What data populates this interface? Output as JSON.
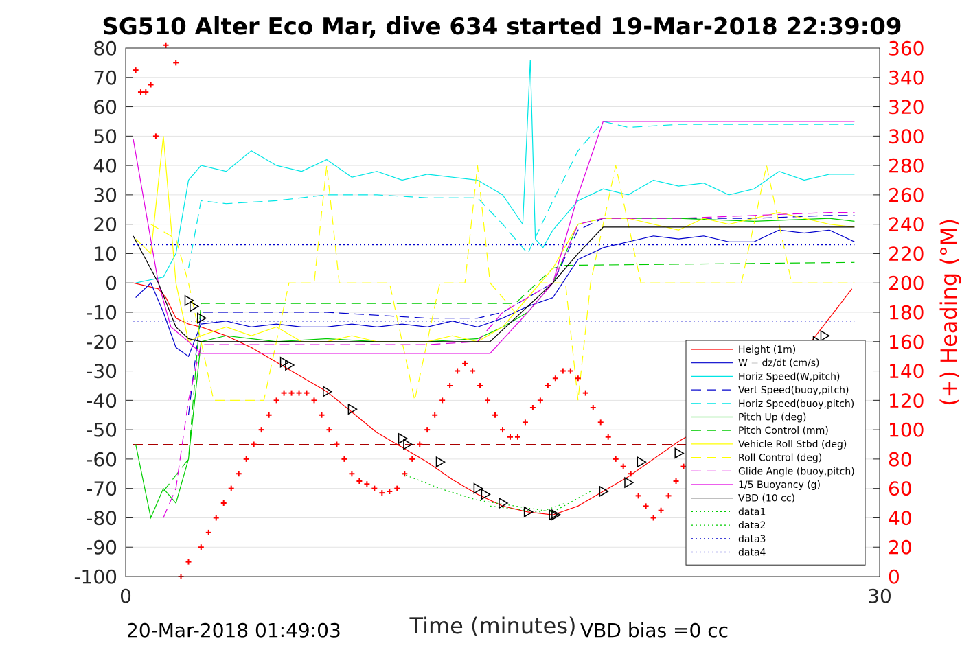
{
  "chart_data": {
    "type": "line",
    "title": "SG510 Alter Eco Mar, dive 634 started 19-Mar-2018 22:39:09",
    "xlabel": "Time (minutes)",
    "ylabel": "",
    "y2label": "(+) Heading (°M)",
    "xlim": [
      0,
      30
    ],
    "ylim": [
      -100,
      80
    ],
    "y2lim": [
      0,
      360
    ],
    "x_ticks": [
      0,
      30
    ],
    "y_ticks": [
      80,
      70,
      60,
      50,
      40,
      30,
      20,
      10,
      0,
      -10,
      -20,
      -30,
      -40,
      -50,
      -60,
      -70,
      -80,
      -90,
      -100
    ],
    "y2_ticks": [
      360,
      340,
      320,
      300,
      280,
      260,
      240,
      220,
      200,
      180,
      160,
      140,
      120,
      100,
      80,
      60,
      40,
      20,
      0
    ],
    "grid": true,
    "legend_position": "lower-right",
    "footer_left": "20-Mar-2018 01:49:03",
    "footer_right": "VBD bias =0 cc",
    "colors": {
      "red": "#ff0000",
      "blue": "#0000cc",
      "cyan": "#00e5e5",
      "green": "#00cc00",
      "yellow": "#ffff00",
      "magenta": "#e000e0",
      "black": "#000000"
    },
    "series": [
      {
        "name": "Height (1m)",
        "color": "#ff0000",
        "dash": "solid",
        "x": [
          0.3,
          0.8,
          1.3,
          1.6,
          2.0,
          2.5,
          3.0,
          4.0,
          5.0,
          6.0,
          7.0,
          8.0,
          9.0,
          10.0,
          11.0,
          12.0,
          13.0,
          14.0,
          15.0,
          16.0,
          17.0,
          18.0,
          19.0,
          20.0,
          21.0,
          22.0,
          23.0,
          24.0,
          25.0,
          26.0,
          27.0,
          28.0,
          28.9
        ],
        "y": [
          0,
          -1,
          -2,
          -5,
          -12,
          -14,
          -15,
          -18,
          -22,
          -27,
          -32,
          -37,
          -44,
          -51,
          -56,
          -61,
          -67,
          -72,
          -76,
          -78,
          -79,
          -76,
          -71,
          -66,
          -60,
          -54,
          -49,
          -43,
          -37,
          -31,
          -23,
          -12,
          -2
        ]
      },
      {
        "name": "W = dz/dt (cm/s)",
        "color": "#0000cc",
        "dash": "solid",
        "x": [
          0.4,
          1.0,
          1.5,
          2.0,
          2.5,
          3.0,
          4.0,
          5.0,
          6.0,
          7.0,
          8.0,
          9.0,
          10.0,
          11.0,
          12.0,
          13.0,
          14.0,
          15.0,
          16.0,
          17.0,
          18.0,
          19.0,
          20.0,
          21.0,
          22.0,
          23.0,
          24.0,
          25.0,
          26.0,
          27.0,
          28.0,
          29.0
        ],
        "y": [
          -5,
          0,
          -10,
          -22,
          -25,
          -14,
          -13,
          -15,
          -14,
          -15,
          -15,
          -14,
          -15,
          -14,
          -15,
          -13,
          -15,
          -12,
          -8,
          -5,
          8,
          12,
          14,
          16,
          15,
          16,
          14,
          14,
          18,
          17,
          18,
          14
        ]
      },
      {
        "name": "Horiz Speed(W,pitch)",
        "color": "#00e5e5",
        "dash": "solid",
        "x": [
          0.4,
          1.5,
          2.0,
          2.5,
          3.0,
          4.0,
          5.0,
          6.0,
          7.0,
          8.0,
          9.0,
          10.0,
          11.0,
          12.0,
          13.0,
          14.0,
          15.0,
          15.8,
          16.1,
          16.3,
          16.6,
          17.0,
          18.0,
          19.0,
          20.0,
          21.0,
          22.0,
          23.0,
          24.0,
          25.0,
          26.0,
          27.0,
          28.0,
          29.0
        ],
        "y": [
          0,
          2,
          10,
          35,
          40,
          38,
          45,
          40,
          38,
          42,
          36,
          38,
          35,
          37,
          36,
          35,
          30,
          20,
          76,
          15,
          12,
          18,
          28,
          32,
          30,
          35,
          33,
          34,
          30,
          32,
          38,
          35,
          37,
          37
        ]
      },
      {
        "name": "Vert Speed(buoy,pitch)",
        "color": "#0000cc",
        "dash": "dashed",
        "x": [
          2.5,
          3.0,
          4.0,
          6.0,
          8.0,
          10.0,
          12.0,
          14.0,
          15.0,
          16.0,
          17.0,
          18.0,
          19.0,
          22.0,
          25.0,
          28.0,
          29.0
        ],
        "y": [
          -45,
          -10,
          -10,
          -10,
          -10,
          -11,
          -12,
          -12,
          -10,
          -5,
          0,
          18,
          22,
          22,
          22,
          23,
          23
        ]
      },
      {
        "name": "Horiz Speed(buoy,pitch)",
        "color": "#00e5e5",
        "dash": "dashed",
        "x": [
          2.5,
          3.0,
          4.0,
          6.0,
          8.0,
          10.0,
          12.0,
          14.0,
          15.0,
          16.0,
          17.0,
          18.0,
          19.0,
          20.0,
          22.0,
          25.0,
          28.0,
          29.0
        ],
        "y": [
          5,
          28,
          27,
          28,
          30,
          30,
          29,
          29,
          20,
          10,
          28,
          45,
          55,
          53,
          54,
          54,
          54,
          54
        ]
      },
      {
        "name": "Pitch Up (deg)",
        "color": "#00cc00",
        "dash": "solid",
        "x": [
          0.4,
          1.0,
          1.5,
          2.0,
          2.5,
          3.0,
          4.0,
          6.0,
          8.0,
          10.0,
          12.0,
          14.0,
          15.0,
          16.0,
          17.0,
          18.0,
          19.0,
          22.0,
          25.0,
          28.0,
          29.0
        ],
        "y": [
          -55,
          -80,
          -70,
          -75,
          -60,
          -20,
          -18,
          -20,
          -19,
          -20,
          -20,
          -19,
          -15,
          -10,
          0,
          20,
          22,
          22,
          21,
          22,
          21
        ]
      },
      {
        "name": "Pitch Control (mm)",
        "color": "#00cc00",
        "dash": "dashed",
        "x": [
          1.5,
          2.5,
          3.0,
          14.5,
          15.5,
          17.0,
          17.5,
          29.0
        ],
        "y": [
          -71,
          -60,
          -7,
          -7,
          -7,
          5,
          6,
          7
        ]
      },
      {
        "name": "Vehicle Roll Stbd (deg)",
        "color": "#ffff00",
        "dash": "solid",
        "x": [
          0.4,
          1.0,
          1.5,
          2.0,
          2.5,
          3.0,
          4.0,
          5.0,
          6.0,
          7.0,
          8.0,
          9.0,
          10.0,
          11.0,
          12.0,
          13.0,
          14.0,
          15.0,
          16.0,
          17.0,
          18.0,
          19.0,
          20.0,
          21.0,
          22.0,
          23.0,
          24.0,
          25.0,
          26.0,
          27.0,
          28.0,
          29.0
        ],
        "y": [
          15,
          10,
          50,
          0,
          -20,
          -18,
          -15,
          -18,
          -15,
          -20,
          -20,
          -18,
          -20,
          -20,
          -20,
          -18,
          -20,
          -15,
          -5,
          5,
          20,
          22,
          22,
          20,
          18,
          22,
          20,
          22,
          24,
          22,
          20,
          19
        ]
      },
      {
        "name": "Roll Control (deg)",
        "color": "#ffff00",
        "dash": "dashed",
        "x": [
          1.0,
          2.0,
          2.5,
          3.5,
          4.5,
          5.5,
          6.5,
          7.5,
          8.0,
          8.5,
          9.5,
          10.5,
          11.5,
          12.5,
          13.5,
          14.0,
          14.5,
          15.5,
          16.5,
          17.5,
          18.0,
          18.5,
          19.5,
          20.5,
          21.5,
          22.5,
          23.5,
          24.5,
          25.5,
          26.5,
          27.5,
          28.5,
          29.0
        ],
        "y": [
          20,
          15,
          0,
          -40,
          -40,
          -40,
          0,
          0,
          40,
          0,
          0,
          0,
          -40,
          0,
          0,
          40,
          0,
          -10,
          0,
          0,
          -40,
          0,
          40,
          0,
          0,
          0,
          0,
          0,
          40,
          0,
          0,
          0,
          0
        ]
      },
      {
        "name": "Glide Angle (buoy,pitch)",
        "color": "#e000e0",
        "dash": "dashed",
        "x": [
          1.5,
          2.0,
          2.5,
          3.0,
          4.0,
          6.0,
          8.0,
          10.0,
          12.0,
          14.0,
          15.0,
          16.0,
          17.0,
          18.0,
          19.0,
          22.0,
          25.0,
          28.0,
          29.0
        ],
        "y": [
          -80,
          -70,
          -40,
          -21,
          -21,
          -21,
          -21,
          -21,
          -21,
          -20,
          -10,
          -5,
          0,
          20,
          22,
          22,
          23,
          24,
          24
        ]
      },
      {
        "name": "1/5 Buoyancy (g)",
        "color": "#e000e0",
        "dash": "solid",
        "x": [
          0.3,
          1.3,
          1.8,
          2.5,
          3.0,
          10.0,
          14.5,
          16.0,
          17.0,
          18.0,
          19.0,
          20.0,
          25.0,
          29.0
        ],
        "y": [
          49,
          0,
          -15,
          -20,
          -24,
          -24,
          -24,
          -10,
          0,
          30,
          55,
          55,
          55,
          55
        ]
      },
      {
        "name": "VBD (10 cc)",
        "color": "#000000",
        "dash": "solid",
        "x": [
          0.3,
          1.3,
          2.0,
          2.5,
          3.0,
          14.5,
          16.0,
          17.0,
          18.0,
          19.0,
          29.0
        ],
        "y": [
          16,
          0,
          -15,
          -19,
          -20,
          -20,
          -8,
          0,
          10,
          19,
          19
        ]
      },
      {
        "name": "data1",
        "color": "#00cc00",
        "dash": "dotted",
        "x": [
          11.0,
          12.5,
          14.0,
          15.5,
          17.0,
          18.5
        ],
        "y": [
          -65,
          -70,
          -74,
          -76,
          -78,
          -71
        ]
      },
      {
        "name": "data2",
        "color": "#00cc00",
        "dash": "dotted",
        "x": [
          14.5,
          15.5,
          16.5,
          17.5
        ],
        "y": [
          -76,
          -77,
          -78,
          -75
        ]
      },
      {
        "name": "data3",
        "color": "#0000cc",
        "dash": "dotted",
        "x": [
          0.3,
          29.0
        ],
        "y": [
          13,
          13
        ]
      },
      {
        "name": "data4",
        "color": "#0000cc",
        "dash": "dotted",
        "x": [
          0.3,
          29.0
        ],
        "y": [
          -13,
          -13
        ]
      }
    ],
    "reference_line": {
      "color": "#aa0000",
      "dash": "dashed",
      "y": -55,
      "xlim": [
        0.3,
        29.0
      ]
    },
    "heading_points": {
      "color": "#ff0000",
      "axis": "right",
      "x": [
        0.4,
        0.6,
        0.8,
        1.0,
        1.2,
        1.6,
        2.0,
        2.2,
        2.5,
        3.0,
        3.3,
        3.6,
        3.9,
        4.2,
        4.5,
        4.8,
        5.1,
        5.4,
        5.7,
        6.0,
        6.3,
        6.6,
        6.9,
        7.2,
        7.5,
        7.8,
        8.1,
        8.4,
        8.7,
        9.0,
        9.3,
        9.6,
        9.9,
        10.2,
        10.5,
        10.8,
        11.1,
        11.4,
        11.7,
        12.0,
        12.3,
        12.6,
        12.9,
        13.2,
        13.5,
        13.8,
        14.1,
        14.4,
        14.7,
        15.0,
        15.3,
        15.6,
        15.9,
        16.2,
        16.5,
        16.8,
        17.1,
        17.4,
        17.7,
        18.0,
        18.3,
        18.6,
        18.9,
        19.2,
        19.5,
        19.8,
        20.1,
        20.4,
        20.7,
        21.0,
        21.3,
        21.6,
        21.9,
        22.2,
        22.5,
        22.8,
        23.1,
        23.4,
        23.7,
        24.0,
        24.3,
        24.6,
        24.9,
        25.2,
        25.5,
        25.8,
        26.1,
        26.4,
        26.7,
        27.0,
        27.3,
        27.6,
        27.9,
        28.2,
        28.5,
        28.8
      ],
      "y": [
        345,
        330,
        330,
        335,
        300,
        362,
        350,
        0,
        10,
        20,
        30,
        40,
        50,
        60,
        70,
        80,
        90,
        100,
        110,
        120,
        125,
        125,
        125,
        125,
        120,
        110,
        100,
        90,
        80,
        70,
        65,
        63,
        60,
        57,
        58,
        60,
        70,
        80,
        90,
        100,
        110,
        120,
        130,
        140,
        145,
        140,
        130,
        120,
        110,
        100,
        95,
        95,
        105,
        115,
        120,
        130,
        135,
        140,
        140,
        135,
        125,
        115,
        105,
        95,
        80,
        75,
        70,
        55,
        48,
        40,
        45,
        55,
        65,
        75,
        85,
        92,
        96,
        97,
        95,
        92,
        90,
        88,
        85,
        82,
        78,
        75,
        80,
        90,
        100,
        105,
        110,
        115,
        112,
        105,
        90,
        85
      ]
    },
    "markers": {
      "color": "#000000",
      "symbol": "triangle-open",
      "x": [
        2.5,
        2.7,
        3.0,
        6.3,
        6.5,
        8.0,
        9.0,
        11.0,
        11.2,
        12.5,
        14.0,
        14.3,
        15.0,
        16.0,
        17.0,
        17.1,
        19.0,
        20.0,
        20.5,
        22.0,
        23.0,
        23.3,
        26.0,
        26.3,
        27.5,
        27.8
      ],
      "y": [
        -6,
        -8,
        -12,
        -27,
        -28,
        -37,
        -43,
        -53,
        -55,
        -61,
        -70,
        -72,
        -75,
        -78,
        -79,
        -79,
        -71,
        -68,
        -61,
        -58,
        -50,
        -48,
        -30,
        -28,
        -20,
        -18
      ]
    }
  }
}
